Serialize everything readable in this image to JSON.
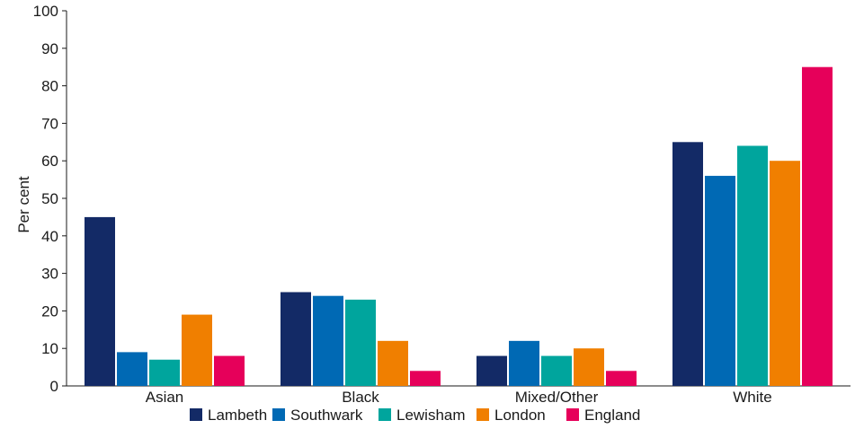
{
  "chart_data": {
    "type": "bar",
    "ylabel": "Per cent",
    "ylim": [
      0,
      100
    ],
    "yticks": [
      0,
      10,
      20,
      30,
      40,
      50,
      60,
      70,
      80,
      90,
      100
    ],
    "categories": [
      "Asian",
      "Black",
      "Mixed/Other",
      "White"
    ],
    "series": [
      {
        "name": "Lambeth",
        "color": "#132a66",
        "values": [
          45,
          25,
          8,
          65
        ]
      },
      {
        "name": "Southwark",
        "color": "#0069b4",
        "values": [
          9,
          24,
          12,
          56
        ]
      },
      {
        "name": "Lewisham",
        "color": "#00a59d",
        "values": [
          7,
          23,
          8,
          64
        ]
      },
      {
        "name": "London",
        "color": "#f07f00",
        "values": [
          19,
          12,
          10,
          60
        ]
      },
      {
        "name": "England",
        "color": "#e6005a",
        "values": [
          8,
          4,
          4,
          85
        ]
      }
    ],
    "legend_position": "bottom",
    "grid": false
  }
}
